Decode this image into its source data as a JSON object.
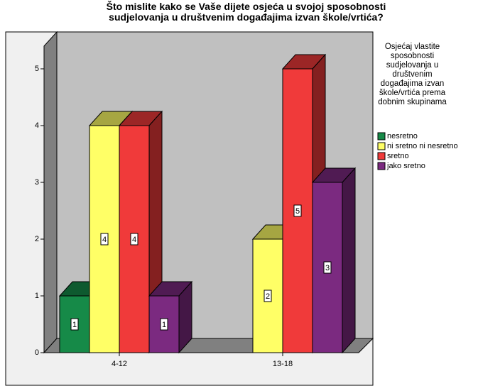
{
  "chart_data": {
    "type": "bar3d",
    "title": "Što mislite kako se Vaše dijete osjeća u svojoj sposobnosti sudjelovanja u društvenim događajima izvan škole/vrtića?",
    "legend_title": "Osjećaj vlastite sposobnosti sudjelovanja u društvenim događajima izvan škole/vrtića prema dobnim skupinama",
    "categories": [
      "4-12",
      "13-18"
    ],
    "series": [
      {
        "name": "nesretno",
        "color": "#168a48",
        "values": [
          1,
          null
        ]
      },
      {
        "name": "ni sretno ni nesretno",
        "color": "#ffff66",
        "values": [
          4,
          2
        ]
      },
      {
        "name": "sretno",
        "color": "#f03a3a",
        "values": [
          4,
          5
        ]
      },
      {
        "name": "jako sretno",
        "color": "#7b2a80",
        "values": [
          1,
          3
        ]
      }
    ],
    "ylim": [
      0,
      5.4
    ],
    "yticks": [
      0,
      1,
      2,
      3,
      4,
      5
    ],
    "grid": false,
    "legend": "right"
  }
}
